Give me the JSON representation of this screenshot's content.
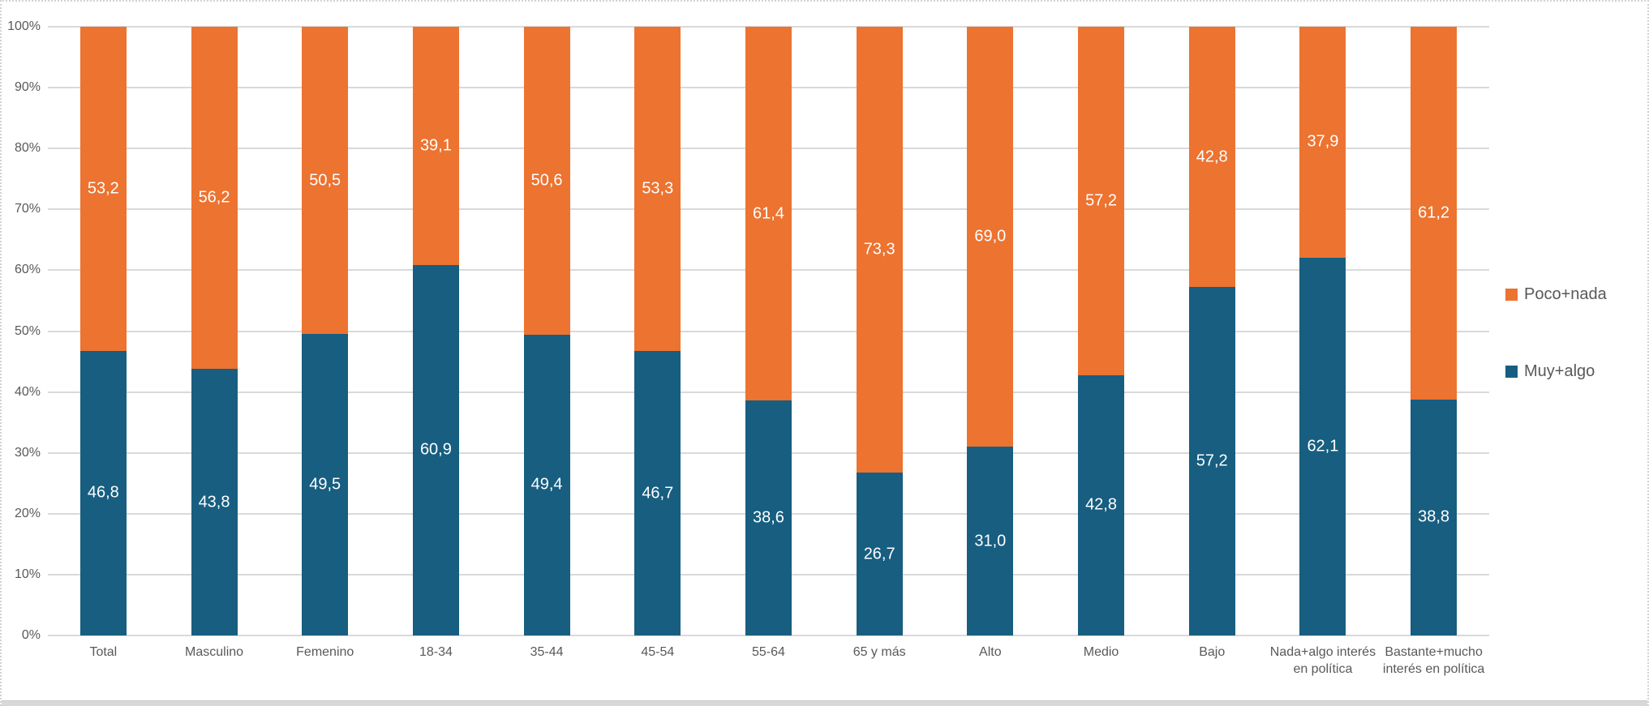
{
  "chart_data": {
    "type": "bar",
    "stacked": true,
    "stack_order": "bottom-to-top",
    "unit": "percent",
    "title": "",
    "xlabel": "",
    "ylabel": "",
    "ylim": [
      0,
      100
    ],
    "grid": true,
    "ytick_labels": [
      "0%",
      "10%",
      "20%",
      "30%",
      "40%",
      "50%",
      "60%",
      "70%",
      "80%",
      "90%",
      "100%"
    ],
    "categories": [
      "Total",
      "Masculino",
      "Femenino",
      "18-34",
      "35-44",
      "45-54",
      "55-64",
      "65 y más",
      "Alto",
      "Medio",
      "Bajo",
      "Nada+algo interés\nen política",
      "Bastante+mucho\ninterés en política"
    ],
    "series": [
      {
        "name": "Muy+algo",
        "color": "#175e80",
        "values": [
          46.8,
          43.8,
          49.5,
          60.9,
          49.4,
          46.7,
          38.6,
          26.7,
          31.0,
          42.8,
          57.2,
          62.1,
          38.8
        ],
        "labels": [
          "46,8",
          "43,8",
          "49,5",
          "60,9",
          "49,4",
          "46,7",
          "38,6",
          "26,7",
          "31,0",
          "42,8",
          "57,2",
          "62,1",
          "38,8"
        ]
      },
      {
        "name": "Poco+nada",
        "color": "#ec7330",
        "values": [
          53.2,
          56.2,
          50.5,
          39.1,
          50.6,
          53.3,
          61.4,
          73.3,
          69.0,
          57.2,
          42.8,
          37.9,
          61.2
        ],
        "labels": [
          "53,2",
          "56,2",
          "50,5",
          "39,1",
          "50,6",
          "53,3",
          "61,4",
          "73,3",
          "69,0",
          "57,2",
          "42,8",
          "37,9",
          "61,2"
        ]
      }
    ],
    "legend": {
      "position": "right",
      "entries": [
        {
          "label": "Poco+nada",
          "color": "#ec7330"
        },
        {
          "label": "Muy+algo",
          "color": "#175e80"
        }
      ]
    }
  },
  "colors": {
    "gridline": "#d9d9d9",
    "axis_text": "#595959",
    "data_label": "#ffffff",
    "background": "#ffffff"
  }
}
